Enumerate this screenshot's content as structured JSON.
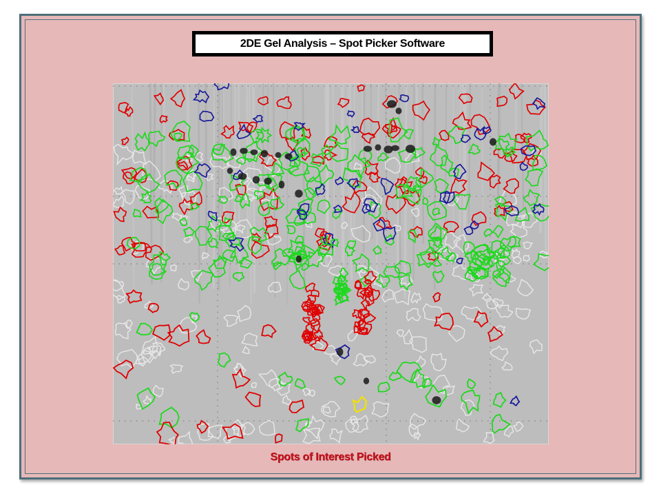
{
  "slide": {
    "title": "2DE Gel Analysis – Spot Picker Software",
    "caption": "Spots of Interest Picked"
  },
  "gel_image": {
    "description_icon": "gel-electrophoresis-image",
    "colors": {
      "background": "#bdbdbd",
      "red": "#e00000",
      "green": "#1ed81e",
      "blue": "#1a1a9c",
      "white": "#e8e8e8",
      "yellow": "#f2e200",
      "dark_spot": "#1a1a1a"
    }
  }
}
